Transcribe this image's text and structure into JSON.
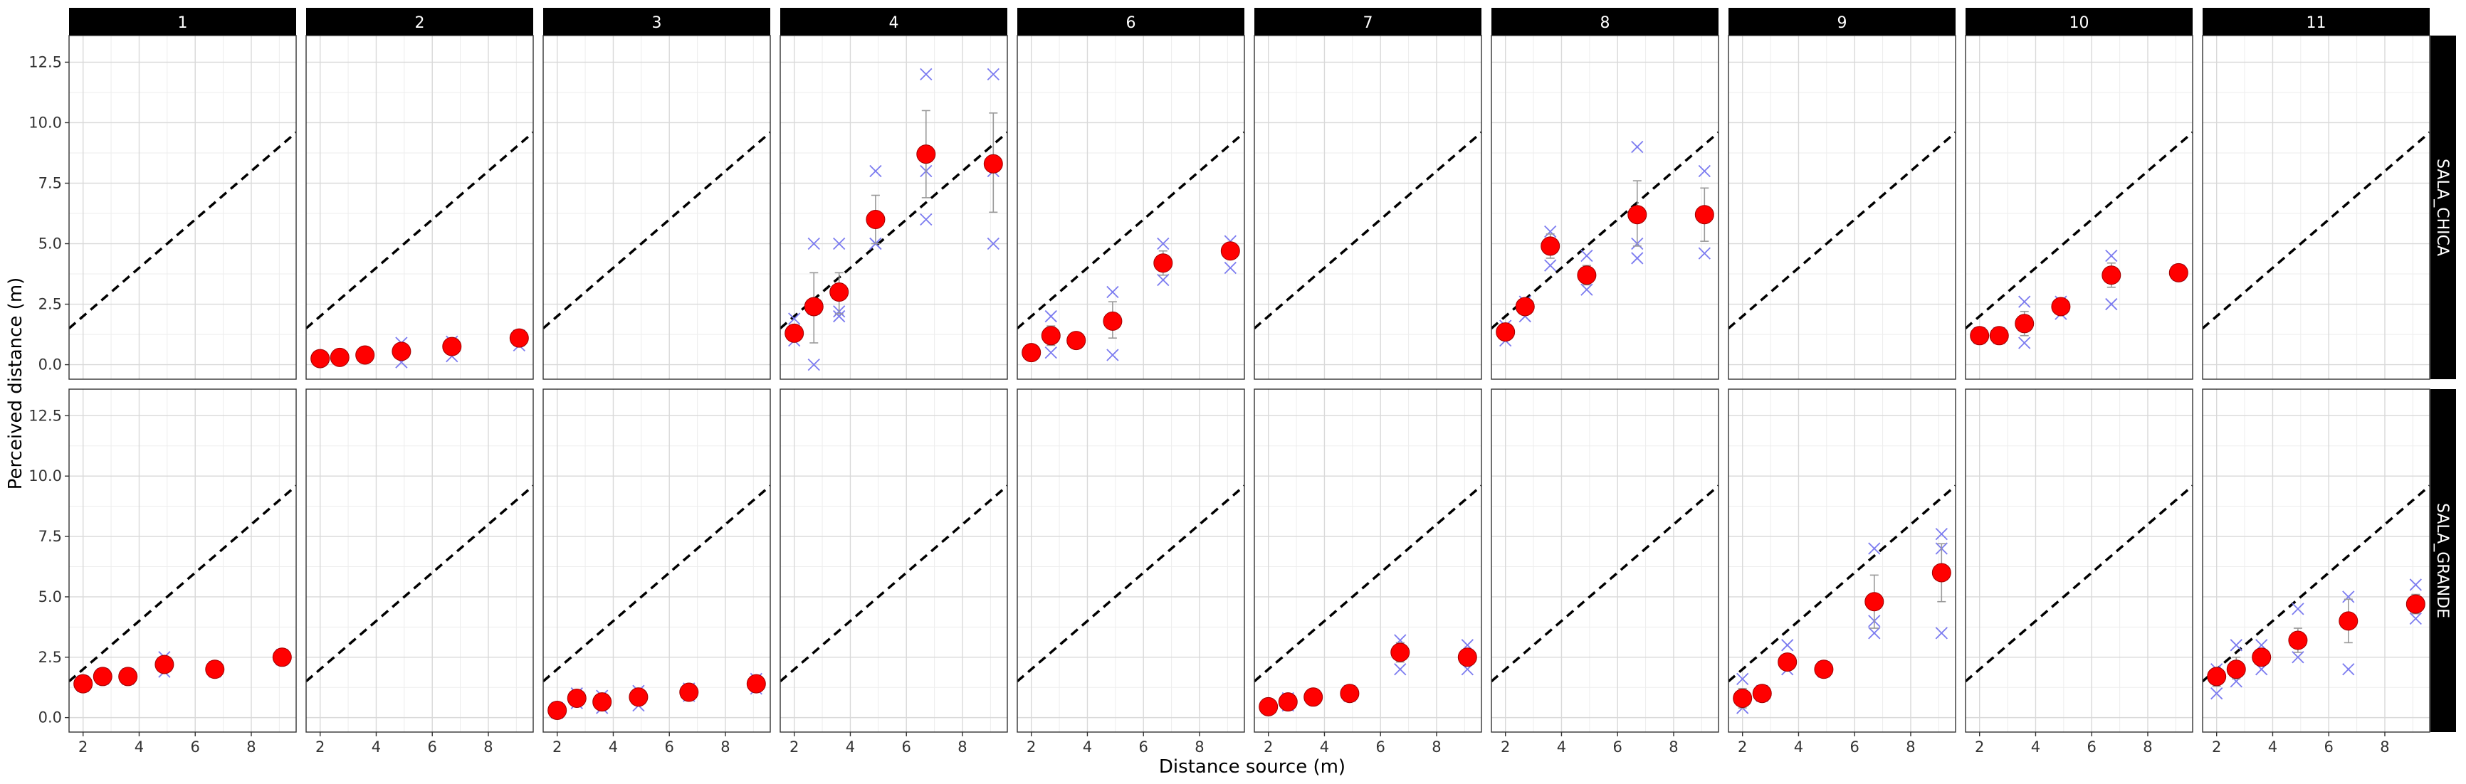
{
  "chart_data": {
    "type": "scatter",
    "layout": "facet-grid",
    "xlabel": "Distance source (m)",
    "ylabel": "Perceived distance (m)",
    "xlim": [
      1.5,
      9.6
    ],
    "ylim": [
      -0.6,
      13.6
    ],
    "x_ticks": [
      2,
      4,
      6,
      8
    ],
    "y_ticks": [
      0.0,
      2.5,
      5.0,
      7.5,
      10.0,
      12.5
    ],
    "y_tick_labels": [
      "0.0",
      "2.5",
      "5.0",
      "7.5",
      "10.0",
      "12.5"
    ],
    "grid": true,
    "reference_line": {
      "style": "dashed",
      "color": "#000000",
      "slope": 1,
      "intercept": 0
    },
    "colors": {
      "mean": "#ff0000",
      "raw": "#7b7bf0",
      "errorbar": "#999999",
      "strip": "#000000"
    },
    "col_facets": [
      "1",
      "2",
      "3",
      "4",
      "6",
      "7",
      "8",
      "9",
      "10",
      "11"
    ],
    "row_facets": [
      "SALA_CHICA",
      "SALA_GRANDE"
    ],
    "panels": [
      {
        "row": "SALA_CHICA",
        "col": "1",
        "points": []
      },
      {
        "row": "SALA_CHICA",
        "col": "2",
        "points": [
          {
            "x": 2.0,
            "mean": 0.25,
            "raw": [
              0.2,
              0.3
            ]
          },
          {
            "x": 2.7,
            "mean": 0.3,
            "raw": [
              0.25,
              0.35
            ]
          },
          {
            "x": 3.6,
            "mean": 0.4,
            "raw": [
              0.35,
              0.45
            ]
          },
          {
            "x": 4.9,
            "mean": 0.55,
            "raw": [
              0.1,
              0.9
            ]
          },
          {
            "x": 6.7,
            "mean": 0.75,
            "raw": [
              0.35,
              0.95
            ]
          },
          {
            "x": 9.1,
            "mean": 1.1,
            "raw": [
              0.8,
              1.2
            ]
          }
        ]
      },
      {
        "row": "SALA_CHICA",
        "col": "3",
        "points": []
      },
      {
        "row": "SALA_CHICA",
        "col": "4",
        "points": [
          {
            "x": 2.0,
            "mean": 1.3,
            "raw": [
              1.0,
              1.9
            ],
            "err": [
              1.0,
              1.6
            ]
          },
          {
            "x": 2.7,
            "mean": 2.4,
            "raw": [
              0.0,
              2.3,
              5.0
            ],
            "err": [
              0.9,
              3.8
            ]
          },
          {
            "x": 3.6,
            "mean": 3.0,
            "raw": [
              2.0,
              2.2,
              5.0
            ],
            "err": [
              2.1,
              3.8
            ]
          },
          {
            "x": 4.9,
            "mean": 6.0,
            "raw": [
              5.0,
              5.0,
              8.0
            ],
            "err": [
              5.0,
              7.0
            ]
          },
          {
            "x": 6.7,
            "mean": 8.7,
            "raw": [
              6.0,
              8.0,
              12.0
            ],
            "err": [
              6.9,
              10.5
            ]
          },
          {
            "x": 9.1,
            "mean": 8.3,
            "raw": [
              5.0,
              8.0,
              12.0
            ],
            "err": [
              6.3,
              10.4
            ]
          }
        ]
      },
      {
        "row": "SALA_CHICA",
        "col": "6",
        "points": [
          {
            "x": 2.0,
            "mean": 0.5,
            "raw": [
              0.5
            ]
          },
          {
            "x": 2.7,
            "mean": 1.2,
            "raw": [
              0.5,
              2.0
            ],
            "err": [
              0.8,
              1.6
            ]
          },
          {
            "x": 3.6,
            "mean": 1.0,
            "raw": [
              1.0
            ]
          },
          {
            "x": 4.9,
            "mean": 1.8,
            "raw": [
              0.4,
              3.0
            ],
            "err": [
              1.1,
              2.6
            ]
          },
          {
            "x": 6.7,
            "mean": 4.2,
            "raw": [
              3.5,
              5.0
            ],
            "err": [
              3.7,
              4.7
            ]
          },
          {
            "x": 9.1,
            "mean": 4.7,
            "raw": [
              4.0,
              5.1
            ]
          }
        ]
      },
      {
        "row": "SALA_CHICA",
        "col": "7",
        "points": []
      },
      {
        "row": "SALA_CHICA",
        "col": "8",
        "points": [
          {
            "x": 2.0,
            "mean": 1.35,
            "raw": [
              1.0,
              1.6
            ]
          },
          {
            "x": 2.7,
            "mean": 2.4,
            "raw": [
              2.0,
              2.6
            ]
          },
          {
            "x": 3.6,
            "mean": 4.9,
            "raw": [
              4.1,
              5.5
            ],
            "err": [
              4.4,
              5.4
            ]
          },
          {
            "x": 4.9,
            "mean": 3.7,
            "raw": [
              3.1,
              4.5
            ],
            "err": [
              3.3,
              4.1
            ]
          },
          {
            "x": 6.7,
            "mean": 6.2,
            "raw": [
              4.4,
              5.0,
              9.0
            ],
            "err": [
              4.9,
              7.6
            ]
          },
          {
            "x": 9.1,
            "mean": 6.2,
            "raw": [
              4.6,
              8.0
            ],
            "err": [
              5.1,
              7.3
            ]
          }
        ]
      },
      {
        "row": "SALA_CHICA",
        "col": "9",
        "points": []
      },
      {
        "row": "SALA_CHICA",
        "col": "10",
        "points": [
          {
            "x": 2.0,
            "mean": 1.2,
            "raw": [
              1.1,
              1.3
            ]
          },
          {
            "x": 2.7,
            "mean": 1.2,
            "raw": [
              1.1,
              1.3
            ]
          },
          {
            "x": 3.6,
            "mean": 1.7,
            "raw": [
              0.9,
              2.6
            ],
            "err": [
              1.2,
              2.2
            ]
          },
          {
            "x": 4.9,
            "mean": 2.4,
            "raw": [
              2.1,
              2.6
            ]
          },
          {
            "x": 6.7,
            "mean": 3.7,
            "raw": [
              2.5,
              4.5
            ],
            "err": [
              3.2,
              4.2
            ]
          },
          {
            "x": 9.1,
            "mean": 3.8,
            "raw": [
              3.7,
              3.9
            ]
          }
        ]
      },
      {
        "row": "SALA_CHICA",
        "col": "11",
        "points": []
      },
      {
        "row": "SALA_GRANDE",
        "col": "1",
        "points": [
          {
            "x": 2.0,
            "mean": 1.4,
            "raw": [
              1.3,
              1.5
            ]
          },
          {
            "x": 2.7,
            "mean": 1.7,
            "raw": [
              1.6,
              1.8
            ]
          },
          {
            "x": 3.6,
            "mean": 1.7,
            "raw": [
              1.6,
              1.8
            ]
          },
          {
            "x": 4.9,
            "mean": 2.2,
            "raw": [
              1.9,
              2.5
            ]
          },
          {
            "x": 6.7,
            "mean": 2.0,
            "raw": [
              1.9,
              2.1
            ]
          },
          {
            "x": 9.1,
            "mean": 2.5,
            "raw": [
              2.4,
              2.6
            ]
          }
        ]
      },
      {
        "row": "SALA_GRANDE",
        "col": "2",
        "points": []
      },
      {
        "row": "SALA_GRANDE",
        "col": "3",
        "points": [
          {
            "x": 2.0,
            "mean": 0.3,
            "raw": [
              0.2,
              0.4
            ]
          },
          {
            "x": 2.7,
            "mean": 0.8,
            "raw": [
              0.6,
              1.0
            ]
          },
          {
            "x": 3.6,
            "mean": 0.65,
            "raw": [
              0.4,
              0.9
            ]
          },
          {
            "x": 4.9,
            "mean": 0.85,
            "raw": [
              0.5,
              1.1
            ]
          },
          {
            "x": 6.7,
            "mean": 1.05,
            "raw": [
              0.9,
              1.2
            ]
          },
          {
            "x": 9.1,
            "mean": 1.4,
            "raw": [
              1.2,
              1.6
            ]
          }
        ]
      },
      {
        "row": "SALA_GRANDE",
        "col": "4",
        "points": []
      },
      {
        "row": "SALA_GRANDE",
        "col": "6",
        "points": []
      },
      {
        "row": "SALA_GRANDE",
        "col": "7",
        "points": [
          {
            "x": 2.0,
            "mean": 0.45,
            "raw": [
              0.4,
              0.5
            ]
          },
          {
            "x": 2.7,
            "mean": 0.65,
            "raw": [
              0.5,
              0.8
            ]
          },
          {
            "x": 3.6,
            "mean": 0.85,
            "raw": [
              0.8,
              0.9
            ]
          },
          {
            "x": 4.9,
            "mean": 1.0,
            "raw": [
              0.9,
              1.1
            ]
          },
          {
            "x": 6.7,
            "mean": 2.7,
            "raw": [
              2.0,
              3.2
            ],
            "err": [
              2.3,
              3.1
            ]
          },
          {
            "x": 9.1,
            "mean": 2.5,
            "raw": [
              2.0,
              3.0
            ],
            "err": [
              2.2,
              2.8
            ]
          }
        ]
      },
      {
        "row": "SALA_GRANDE",
        "col": "8",
        "points": []
      },
      {
        "row": "SALA_GRANDE",
        "col": "9",
        "points": [
          {
            "x": 2.0,
            "mean": 0.8,
            "raw": [
              0.4,
              1.6
            ],
            "err": [
              0.4,
              1.2
            ]
          },
          {
            "x": 2.7,
            "mean": 1.0,
            "raw": [
              0.9,
              1.1
            ]
          },
          {
            "x": 3.6,
            "mean": 2.3,
            "raw": [
              2.0,
              3.0
            ],
            "err": [
              2.0,
              2.6
            ]
          },
          {
            "x": 4.9,
            "mean": 2.0,
            "raw": [
              1.9,
              2.1
            ]
          },
          {
            "x": 6.7,
            "mean": 4.8,
            "raw": [
              3.5,
              4.0,
              7.0
            ],
            "err": [
              3.7,
              5.9
            ]
          },
          {
            "x": 9.1,
            "mean": 6.0,
            "raw": [
              3.5,
              7.0,
              7.6
            ],
            "err": [
              4.8,
              7.2
            ]
          }
        ]
      },
      {
        "row": "SALA_GRANDE",
        "col": "10",
        "points": []
      },
      {
        "row": "SALA_GRANDE",
        "col": "11",
        "points": [
          {
            "x": 2.0,
            "mean": 1.7,
            "raw": [
              1.0,
              2.0
            ],
            "err": [
              1.3,
              2.0
            ]
          },
          {
            "x": 2.7,
            "mean": 2.0,
            "raw": [
              1.5,
              3.0
            ],
            "err": [
              1.6,
              2.5
            ]
          },
          {
            "x": 3.6,
            "mean": 2.5,
            "raw": [
              2.0,
              3.0
            ],
            "err": [
              2.2,
              2.8
            ]
          },
          {
            "x": 4.9,
            "mean": 3.2,
            "raw": [
              2.5,
              4.5
            ],
            "err": [
              2.7,
              3.7
            ]
          },
          {
            "x": 6.7,
            "mean": 4.0,
            "raw": [
              2.0,
              5.0
            ],
            "err": [
              3.1,
              4.9
            ]
          },
          {
            "x": 9.1,
            "mean": 4.7,
            "raw": [
              4.1,
              5.5
            ],
            "err": [
              4.3,
              5.1
            ]
          }
        ]
      }
    ]
  }
}
